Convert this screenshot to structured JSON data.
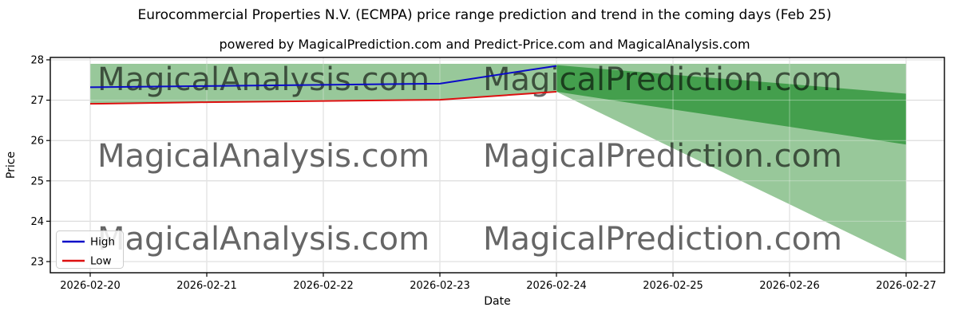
{
  "title": "Eurocommercial Properties N.V. (ECMPA) price range prediction and trend in the coming days (Feb 25)",
  "subtitle": "powered by MagicalPrediction.com and Predict-Price.com and MagicalAnalysis.com",
  "watermarks": {
    "left": "MagicalAnalysis.com",
    "right": "MagicalPrediction.com"
  },
  "colors": {
    "band_light": "#8dc28f",
    "band_dark": "#3f9d49",
    "high_line": "#0a0ac8",
    "low_line": "#dd1010",
    "grid": "#c3c3c3",
    "grid_over_band": "#ffffff",
    "watermark": "#dcdcdc",
    "axis": "#000000",
    "legend_border": "#cccccc"
  },
  "chart_data": {
    "type": "line",
    "title": "Eurocommercial Properties N.V. (ECMPA) price range prediction and trend in the coming days (Feb 25)",
    "xlabel": "Date",
    "ylabel": "Price",
    "grid": true,
    "x_dates": [
      "2026-02-20",
      "2026-02-21",
      "2026-02-22",
      "2026-02-23",
      "2026-02-24",
      "2026-02-25",
      "2026-02-26",
      "2026-02-27"
    ],
    "y_ticks": [
      23,
      24,
      25,
      26,
      27,
      28
    ],
    "ylim": [
      22.72,
      28.06
    ],
    "series": [
      {
        "name": "High",
        "color": "#0a0ac8",
        "x": [
          "2026-02-20",
          "2026-02-21",
          "2026-02-22",
          "2026-02-23",
          "2026-02-24"
        ],
        "values": [
          27.32,
          27.35,
          27.38,
          27.41,
          27.85
        ]
      },
      {
        "name": "Low",
        "color": "#dd1010",
        "x": [
          "2026-02-20",
          "2026-02-21",
          "2026-02-22",
          "2026-02-23",
          "2026-02-24"
        ],
        "values": [
          26.91,
          26.95,
          26.98,
          27.01,
          27.21
        ]
      }
    ],
    "bands": [
      {
        "name": "overall-price-range-band",
        "color": "#8dc28f",
        "opacity": 0.9,
        "x": [
          "2026-02-20",
          "2026-02-21",
          "2026-02-22",
          "2026-02-23",
          "2026-02-24",
          "2026-02-25",
          "2026-02-26",
          "2026-02-27"
        ],
        "upper": [
          27.9,
          27.9,
          27.9,
          27.9,
          27.9,
          27.9,
          27.9,
          27.9
        ],
        "lower": [
          26.91,
          26.95,
          26.98,
          27.01,
          27.21,
          25.81,
          24.42,
          23.02
        ]
      },
      {
        "name": "predicted-trend-band",
        "color": "#3f9d49",
        "opacity": 0.95,
        "x": [
          "2026-02-24",
          "2026-02-25",
          "2026-02-26",
          "2026-02-27"
        ],
        "upper": [
          27.87,
          27.63,
          27.4,
          27.16
        ],
        "lower": [
          27.21,
          26.77,
          26.34,
          25.9
        ]
      }
    ],
    "legend": {
      "position": "lower left",
      "items": [
        {
          "label": "High",
          "color": "#0a0ac8"
        },
        {
          "label": "Low",
          "color": "#dd1010"
        }
      ]
    }
  }
}
